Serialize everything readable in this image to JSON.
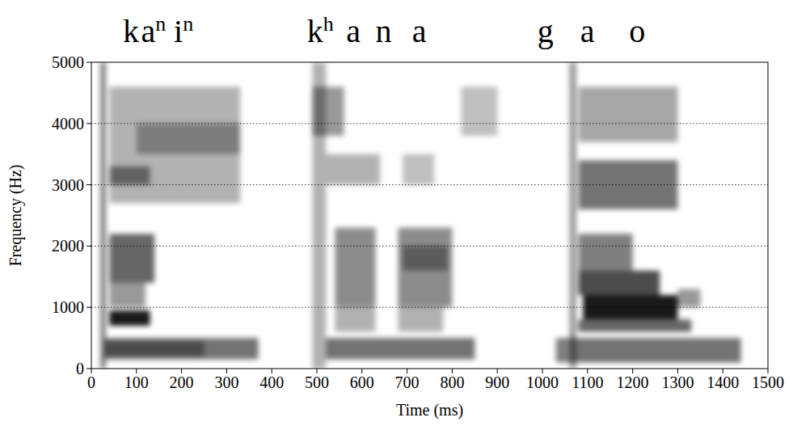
{
  "chart_data": {
    "type": "spectrogram",
    "x_label": "Time (ms)",
    "y_label": "Frequency (Hz)",
    "xlim": [
      0,
      1500
    ],
    "ylim": [
      0,
      5000
    ],
    "xticks": [
      0,
      100,
      200,
      300,
      400,
      500,
      600,
      700,
      800,
      900,
      1000,
      1100,
      1200,
      1300,
      1400,
      1500
    ],
    "yticks": [
      0,
      1000,
      2000,
      3000,
      4000,
      5000
    ],
    "grid": true,
    "color": "#000000",
    "segments": [
      {
        "text": "k",
        "time": 70
      },
      {
        "text": "a",
        "sup": "n",
        "time": 110
      },
      {
        "text": "i",
        "sup": "n",
        "time": 183
      },
      {
        "text": "k",
        "sup": "h",
        "time": 478
      },
      {
        "text": "a",
        "time": 565
      },
      {
        "text": "n",
        "time": 630
      },
      {
        "text": "a",
        "time": 711
      },
      {
        "text": "g",
        "time": 989
      },
      {
        "text": "a",
        "time": 1084
      },
      {
        "text": "o",
        "time": 1192
      }
    ],
    "cells": [
      {
        "t0": 20,
        "t1": 32,
        "f0": 0,
        "f1": 5000,
        "value": 0.5
      },
      {
        "t0": 30,
        "t1": 370,
        "f0": 150,
        "f1": 500,
        "value": 0.55
      },
      {
        "t0": 30,
        "t1": 250,
        "f0": 200,
        "f1": 450,
        "value": 0.35
      },
      {
        "t0": 40,
        "t1": 130,
        "f0": 700,
        "f1": 950,
        "value": 0.9
      },
      {
        "t0": 40,
        "t1": 140,
        "f0": 1400,
        "f1": 2200,
        "value": 0.6
      },
      {
        "t0": 40,
        "t1": 120,
        "f0": 1000,
        "f1": 1400,
        "value": 0.4
      },
      {
        "t0": 40,
        "t1": 330,
        "f0": 2700,
        "f1": 4600,
        "value": 0.3
      },
      {
        "t0": 40,
        "t1": 130,
        "f0": 3000,
        "f1": 3300,
        "value": 0.45
      },
      {
        "t0": 100,
        "t1": 330,
        "f0": 3500,
        "f1": 4000,
        "value": 0.3
      },
      {
        "t0": 490,
        "t1": 520,
        "f0": 0,
        "f1": 5000,
        "value": 0.3
      },
      {
        "t0": 490,
        "t1": 560,
        "f0": 3800,
        "f1": 4600,
        "value": 0.4
      },
      {
        "t0": 520,
        "t1": 850,
        "f0": 150,
        "f1": 500,
        "value": 0.55
      },
      {
        "t0": 540,
        "t1": 630,
        "f0": 1000,
        "f1": 2300,
        "value": 0.45
      },
      {
        "t0": 680,
        "t1": 800,
        "f0": 1000,
        "f1": 2300,
        "value": 0.45
      },
      {
        "t0": 690,
        "t1": 790,
        "f0": 1600,
        "f1": 2000,
        "value": 0.35
      },
      {
        "t0": 540,
        "t1": 630,
        "f0": 600,
        "f1": 1000,
        "value": 0.3
      },
      {
        "t0": 680,
        "t1": 780,
        "f0": 600,
        "f1": 1000,
        "value": 0.3
      },
      {
        "t0": 520,
        "t1": 640,
        "f0": 3000,
        "f1": 3500,
        "value": 0.3
      },
      {
        "t0": 690,
        "t1": 760,
        "f0": 3000,
        "f1": 3500,
        "value": 0.25
      },
      {
        "t0": 820,
        "t1": 900,
        "f0": 3800,
        "f1": 4600,
        "value": 0.25
      },
      {
        "t0": 1030,
        "t1": 1070,
        "f0": 100,
        "f1": 500,
        "value": 0.5
      },
      {
        "t0": 1060,
        "t1": 1075,
        "f0": 0,
        "f1": 5000,
        "value": 0.4
      },
      {
        "t0": 1070,
        "t1": 1440,
        "f0": 100,
        "f1": 500,
        "value": 0.55
      },
      {
        "t0": 1090,
        "t1": 1300,
        "f0": 800,
        "f1": 1200,
        "value": 0.9
      },
      {
        "t0": 1080,
        "t1": 1330,
        "f0": 600,
        "f1": 800,
        "value": 0.6
      },
      {
        "t0": 1080,
        "t1": 1260,
        "f0": 1200,
        "f1": 1600,
        "value": 0.7
      },
      {
        "t0": 1080,
        "t1": 1200,
        "f0": 1600,
        "f1": 2200,
        "value": 0.5
      },
      {
        "t0": 1080,
        "t1": 1300,
        "f0": 2600,
        "f1": 3400,
        "value": 0.55
      },
      {
        "t0": 1080,
        "t1": 1300,
        "f0": 3700,
        "f1": 4600,
        "value": 0.35
      },
      {
        "t0": 1300,
        "t1": 1350,
        "f0": 1000,
        "f1": 1300,
        "value": 0.4
      }
    ]
  }
}
